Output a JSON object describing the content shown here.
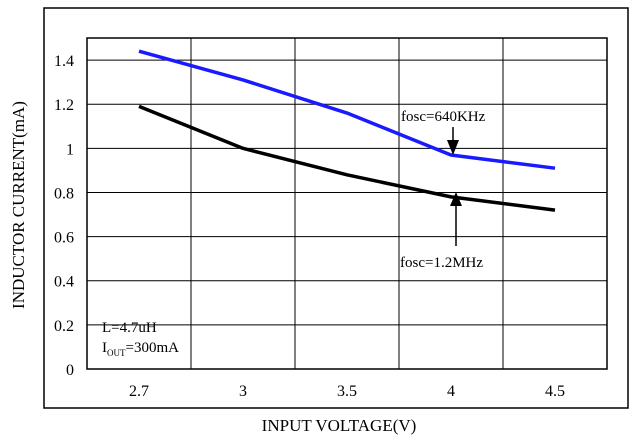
{
  "chart_data": {
    "type": "line",
    "xlabel": "INPUT VOLTAGE(V)",
    "ylabel": "INDUCTOR CURRENT(mA)",
    "x_ticks": [
      "2.7",
      "3",
      "3.5",
      "4",
      "4.5"
    ],
    "y_ticks": [
      "0",
      "0.2",
      "0.4",
      "0.6",
      "0.8",
      "1",
      "1.2",
      "1.4"
    ],
    "ylim": [
      0,
      1.5
    ],
    "grid": true,
    "legend": "none",
    "series": [
      {
        "name": "fosc=640KHz",
        "color": "#1a1aff",
        "x": [
          "2.7",
          "3",
          "3.5",
          "4",
          "4.5"
        ],
        "values": [
          1.44,
          1.31,
          1.16,
          0.97,
          0.91
        ]
      },
      {
        "name": "fosc=1.2MHz",
        "color": "#000000",
        "x": [
          "2.7",
          "3",
          "3.5",
          "4",
          "4.5"
        ],
        "values": [
          1.19,
          1.0,
          0.88,
          0.78,
          0.72
        ]
      }
    ],
    "annotations": {
      "fosc_640": "fosc=640KHz",
      "fosc_12": "fosc=1.2MHz",
      "inductor": "L=4.7uH",
      "iout_main": "I",
      "iout_sub": "OUT",
      "iout_value": "=300mA"
    }
  }
}
